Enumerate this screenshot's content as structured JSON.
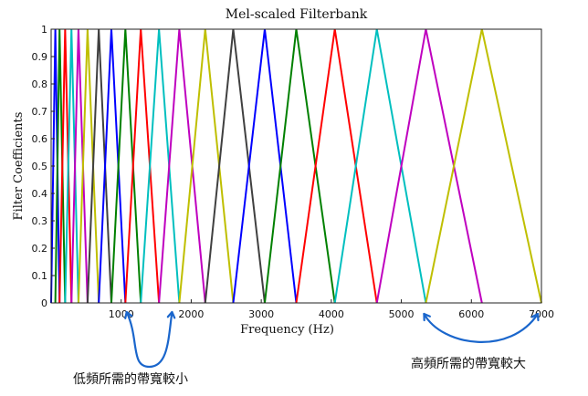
{
  "chart_data": {
    "type": "line",
    "title": "Mel-scaled Filterbank",
    "xlabel": "Frequency (Hz)",
    "ylabel": "Filter Coefficients",
    "xlim": [
      0,
      7000
    ],
    "ylim": [
      0,
      1
    ],
    "x_ticks": [
      1000,
      2000,
      3000,
      4000,
      5000,
      6000,
      7000
    ],
    "x_tick_labels": [
      "1000",
      "2000",
      "3000",
      "4000",
      "5000",
      "6000",
      "7000"
    ],
    "y_ticks": [
      0,
      0.1,
      0.2,
      0.3,
      0.4,
      0.5,
      0.6,
      0.7,
      0.8,
      0.9,
      1
    ],
    "y_tick_labels": [
      "0",
      "0.1",
      "0.2",
      "0.3",
      "0.4",
      "0.5",
      "0.6",
      "0.7",
      "0.8",
      "0.9",
      "1"
    ],
    "grid": false,
    "series_color_cycle": [
      "#0000ff",
      "#008000",
      "#ff0000",
      "#00bfbf",
      "#bf00bf",
      "#bfbf00",
      "#404040"
    ],
    "filters": [
      {
        "start": 0,
        "peak": 60,
        "end": 120
      },
      {
        "start": 60,
        "peak": 120,
        "end": 200
      },
      {
        "start": 120,
        "peak": 200,
        "end": 290
      },
      {
        "start": 200,
        "peak": 290,
        "end": 390
      },
      {
        "start": 290,
        "peak": 390,
        "end": 520
      },
      {
        "start": 390,
        "peak": 520,
        "end": 680
      },
      {
        "start": 520,
        "peak": 680,
        "end": 860
      },
      {
        "start": 680,
        "peak": 860,
        "end": 1060
      },
      {
        "start": 860,
        "peak": 1060,
        "end": 1280
      },
      {
        "start": 1060,
        "peak": 1280,
        "end": 1540
      },
      {
        "start": 1280,
        "peak": 1540,
        "end": 1830
      },
      {
        "start": 1540,
        "peak": 1830,
        "end": 2200
      },
      {
        "start": 1830,
        "peak": 2200,
        "end": 2600
      },
      {
        "start": 2200,
        "peak": 2600,
        "end": 3050
      },
      {
        "start": 2600,
        "peak": 3050,
        "end": 3500
      },
      {
        "start": 3050,
        "peak": 3500,
        "end": 4050
      },
      {
        "start": 3500,
        "peak": 4050,
        "end": 4650
      },
      {
        "start": 4050,
        "peak": 4650,
        "end": 5350
      },
      {
        "start": 4650,
        "peak": 5350,
        "end": 6150
      },
      {
        "start": 5350,
        "peak": 6150,
        "end": 7000
      }
    ],
    "annotations": [
      {
        "text": "低頻所需的帶寬較小",
        "span_hz": [
          1000,
          1700
        ],
        "arrow_color": "#1a66cc"
      },
      {
        "text": "高頻所需的帶寬較大",
        "span_hz": [
          5350,
          7000
        ],
        "arrow_color": "#1a66cc"
      }
    ]
  }
}
